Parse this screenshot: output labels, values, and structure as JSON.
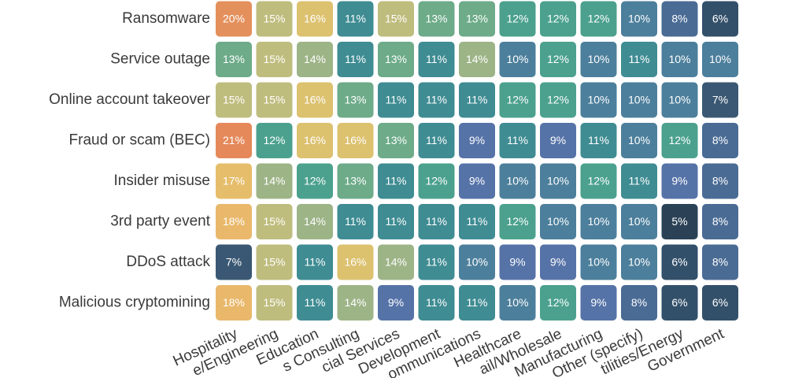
{
  "chart_data": {
    "type": "heatmap",
    "rows": [
      "Ransomware",
      "Service outage",
      "Online account takeover",
      "Fraud or scam (BEC)",
      "Insider misuse",
      "3rd party event",
      "DDoS attack",
      "Malicious cryptomining"
    ],
    "columns": [
      "Hospitality",
      "e/Engineering",
      "Education",
      "s Consulting",
      "cial Services",
      "Development",
      "ommunications",
      "Healthcare",
      "ail/Wholesale",
      "Manufacturing",
      "Other (specify)",
      "tilities/Energy",
      "Government"
    ],
    "values": [
      [
        20,
        15,
        16,
        11,
        15,
        13,
        13,
        12,
        12,
        12,
        10,
        8,
        6
      ],
      [
        13,
        15,
        14,
        11,
        13,
        11,
        14,
        10,
        12,
        10,
        11,
        10,
        10
      ],
      [
        15,
        15,
        16,
        13,
        11,
        11,
        11,
        12,
        12,
        10,
        10,
        10,
        7
      ],
      [
        21,
        12,
        16,
        16,
        13,
        11,
        9,
        11,
        9,
        11,
        10,
        12,
        8
      ],
      [
        17,
        14,
        12,
        13,
        11,
        12,
        9,
        10,
        10,
        12,
        11,
        9,
        8
      ],
      [
        18,
        15,
        14,
        11,
        11,
        11,
        11,
        12,
        10,
        10,
        10,
        5,
        8
      ],
      [
        7,
        15,
        11,
        16,
        14,
        11,
        10,
        9,
        9,
        10,
        10,
        6,
        8
      ],
      [
        18,
        15,
        11,
        14,
        9,
        11,
        11,
        10,
        12,
        9,
        8,
        6,
        6
      ]
    ],
    "value_labels": [
      [
        "20%",
        "15%",
        "16%",
        "11%",
        "15%",
        "13%",
        "13%",
        "12%",
        "12%",
        "12%",
        "10%",
        "8%",
        "6%"
      ],
      [
        "13%",
        "15%",
        "14%",
        "11%",
        "13%",
        "11%",
        "14%",
        "10%",
        "12%",
        "10%",
        "11%",
        "10%",
        "10%"
      ],
      [
        "15%",
        "15%",
        "16%",
        "13%",
        "11%",
        "11%",
        "11%",
        "12%",
        "12%",
        "10%",
        "10%",
        "10%",
        "7%"
      ],
      [
        "21%",
        "12%",
        "16%",
        "16%",
        "13%",
        "11%",
        "9%",
        "11%",
        "9%",
        "11%",
        "10%",
        "12%",
        "8%"
      ],
      [
        "17%",
        "14%",
        "12%",
        "13%",
        "11%",
        "12%",
        "9%",
        "10%",
        "10%",
        "12%",
        "11%",
        "9%",
        "8%"
      ],
      [
        "18%",
        "15%",
        "14%",
        "11%",
        "11%",
        "11%",
        "11%",
        "12%",
        "10%",
        "10%",
        "10%",
        "5%",
        "8%"
      ],
      [
        "7%",
        "15%",
        "11%",
        "16%",
        "14%",
        "11%",
        "10%",
        "9%",
        "9%",
        "10%",
        "10%",
        "6%",
        "8%"
      ],
      [
        "18%",
        "15%",
        "11%",
        "14%",
        "9%",
        "11%",
        "11%",
        "10%",
        "12%",
        "9%",
        "8%",
        "6%",
        "6%"
      ]
    ],
    "colorscale": [
      [
        5,
        "#2b4256"
      ],
      [
        6,
        "#33506a"
      ],
      [
        7,
        "#3a5873"
      ],
      [
        8,
        "#4a6b94"
      ],
      [
        9,
        "#5673a8"
      ],
      [
        10,
        "#4c7f9c"
      ],
      [
        11,
        "#3f8c93"
      ],
      [
        12,
        "#4ba18e"
      ],
      [
        13,
        "#6dab89"
      ],
      [
        14,
        "#9db487"
      ],
      [
        15,
        "#bfbd7e"
      ],
      [
        16,
        "#dcc16f"
      ],
      [
        17,
        "#e6bd6a"
      ],
      [
        18,
        "#e9b86b"
      ],
      [
        20,
        "#e4905c"
      ],
      [
        21,
        "#e5895b"
      ]
    ]
  }
}
